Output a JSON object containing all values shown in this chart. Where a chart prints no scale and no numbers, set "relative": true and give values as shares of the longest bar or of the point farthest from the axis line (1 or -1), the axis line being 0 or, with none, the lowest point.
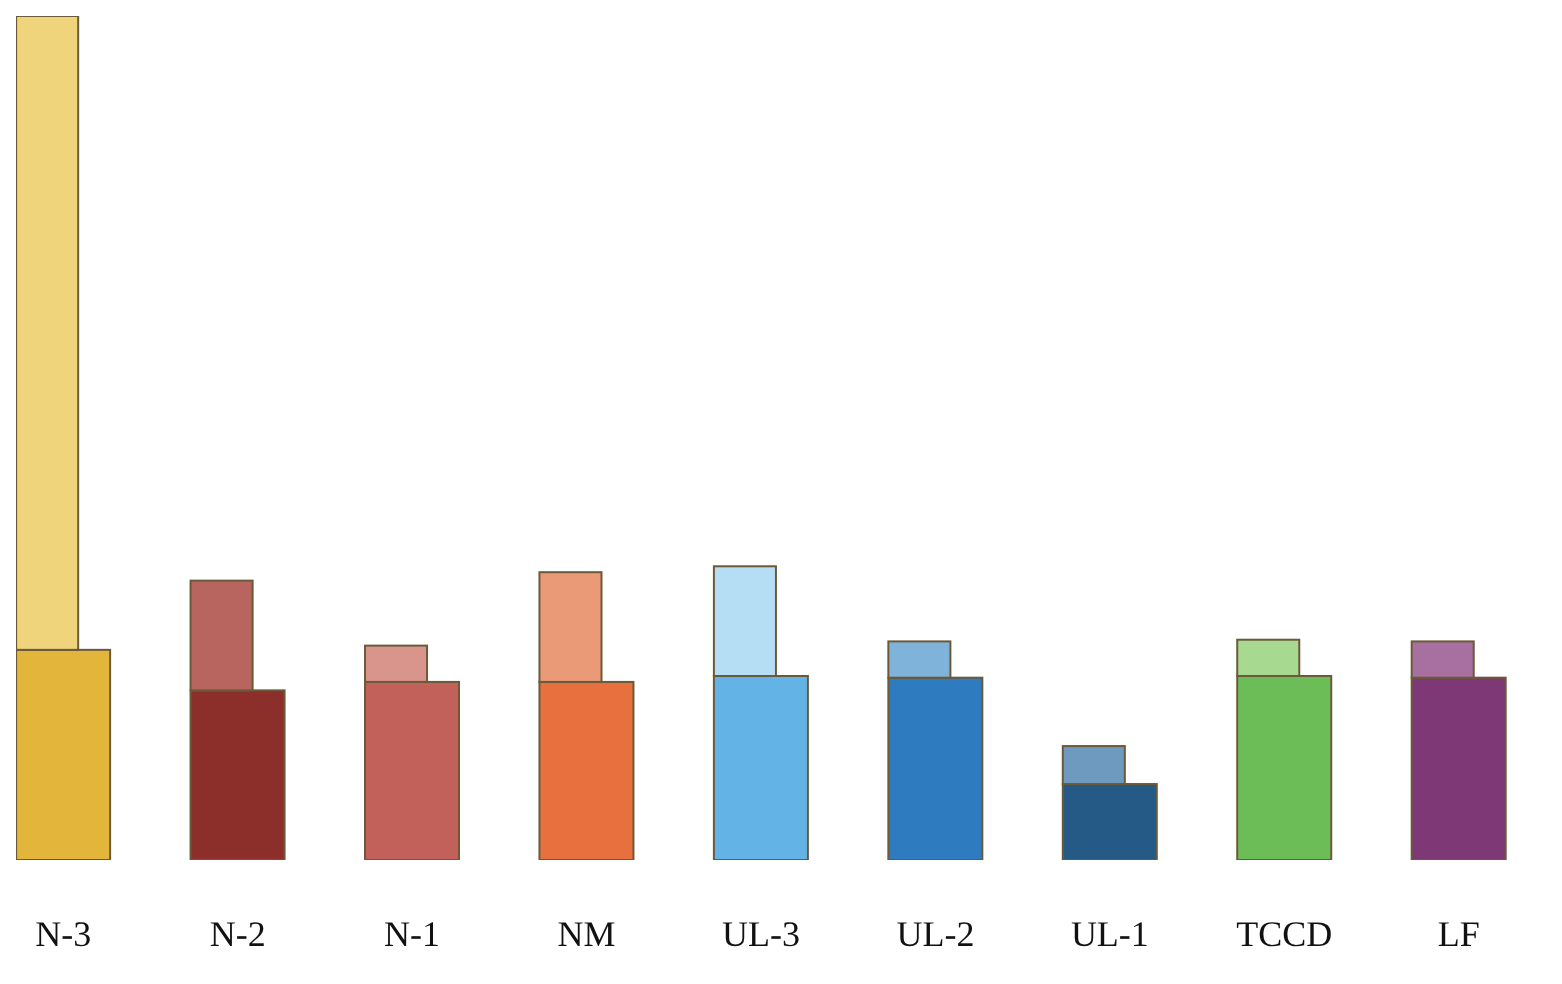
{
  "chart_data": {
    "type": "bar",
    "stacked": true,
    "relative": true,
    "categories": [
      "N-3",
      "N-2",
      "N-1",
      "NM",
      "UL-3",
      "UL-2",
      "UL-1",
      "TCCD",
      "LF"
    ],
    "series": [
      {
        "colors": [
          "#e3b53a",
          "#8c2e2a",
          "#c2605a",
          "#e8703f",
          "#63b3e6",
          "#2f7bbf",
          "#245a85",
          "#6cbd58",
          "#7e3876"
        ],
        "values": [
          0.249,
          0.201,
          0.211,
          0.211,
          0.218,
          0.216,
          0.09,
          0.218,
          0.216
        ]
      },
      {
        "colors": [
          "#f0d47c",
          "#b8655f",
          "#d9948c",
          "#eb9a78",
          "#b5def4",
          "#7fb3da",
          "#6f9ac0",
          "#a8d990",
          "#a870a0"
        ],
        "values": [
          0.751,
          0.13,
          0.043,
          0.13,
          0.13,
          0.043,
          0.045,
          0.043,
          0.043
        ]
      }
    ],
    "grid": false,
    "legend": false
  }
}
